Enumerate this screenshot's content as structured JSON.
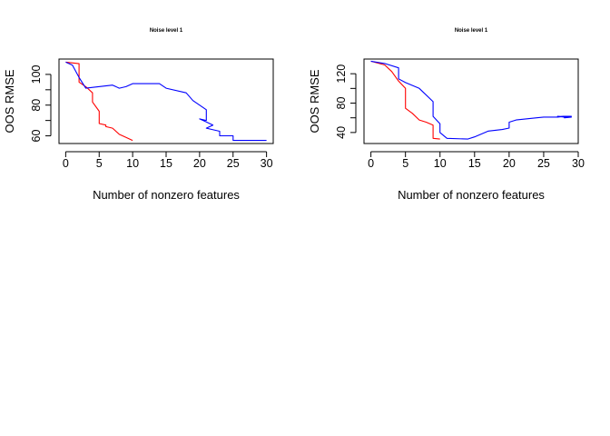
{
  "chart_data": [
    {
      "type": "line",
      "title": "Noise level 1",
      "xlabel": "Number of nonzero features",
      "ylabel": "OOS RMSE",
      "xlim": [
        -1,
        31
      ],
      "ylim": [
        55,
        110
      ],
      "x_ticks": [
        0,
        5,
        10,
        15,
        20,
        25,
        30
      ],
      "x_tick_labels": [
        "0",
        "5",
        "10",
        "15",
        "20",
        "25",
        "30"
      ],
      "y_ticks": [
        60,
        80,
        100
      ],
      "y_tick_labels": [
        "60",
        "80",
        "100"
      ],
      "series": [
        {
          "color": "#ff0000",
          "x": [
            0,
            2,
            2,
            3,
            4,
            4,
            5,
            5,
            6,
            6,
            7,
            8,
            9,
            10,
            10
          ],
          "y": [
            108,
            107,
            95,
            92,
            88,
            82,
            76,
            68,
            67,
            66,
            65,
            61,
            59,
            57,
            57
          ]
        },
        {
          "color": "#0000ff",
          "x": [
            0,
            1,
            2,
            3,
            7,
            8,
            9,
            10,
            14,
            15,
            18,
            19,
            21,
            21,
            20,
            21,
            22,
            21,
            23,
            23,
            25,
            25,
            30
          ],
          "y": [
            108,
            106,
            98,
            91,
            93,
            91,
            92,
            94,
            94,
            91,
            88,
            83,
            77,
            70,
            71,
            69,
            67,
            65,
            63,
            60,
            60,
            57,
            57
          ]
        }
      ]
    },
    {
      "type": "line",
      "title": "Noise level 1",
      "xlabel": "Number of nonzero features",
      "ylabel": "OOS RMSE",
      "xlim": [
        -1,
        30
      ],
      "ylim": [
        25,
        140
      ],
      "x_ticks": [
        0,
        5,
        10,
        15,
        20,
        25,
        30
      ],
      "x_tick_labels": [
        "0",
        "5",
        "10",
        "15",
        "20",
        "25",
        "30"
      ],
      "y_ticks": [
        40,
        80,
        120
      ],
      "y_tick_labels": [
        "40",
        "80",
        "120"
      ],
      "series": [
        {
          "color": "#ff0000",
          "x": [
            0,
            2,
            3,
            4,
            5,
            5,
            6,
            7,
            8,
            9,
            9,
            10
          ],
          "y": [
            137,
            132,
            123,
            110,
            100,
            73,
            66,
            57,
            54,
            50,
            32,
            31
          ]
        },
        {
          "color": "#0000ff",
          "x": [
            0,
            2,
            4,
            4,
            5,
            7,
            9,
            9,
            10,
            10,
            11,
            14,
            15,
            17,
            19,
            20,
            20,
            21,
            24,
            25,
            27,
            28,
            29,
            28,
            29,
            27,
            28
          ],
          "y": [
            137,
            134,
            128,
            113,
            108,
            100,
            82,
            62,
            52,
            40,
            32,
            31,
            34,
            42,
            44,
            46,
            54,
            57,
            60,
            61,
            61,
            62,
            62,
            60,
            61,
            62,
            61
          ]
        }
      ]
    }
  ]
}
